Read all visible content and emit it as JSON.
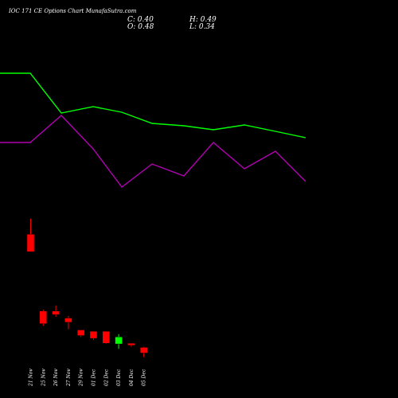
{
  "header": {
    "title": "IOC 171 CE Options Chart MunafaSutra.com",
    "open_label": "O: 0.48",
    "high_label": "H: 0.49",
    "low_label": "L: 0.34",
    "close_label": "C: 0.40"
  },
  "colors": {
    "background": "#000000",
    "bullish": "#00ff00",
    "bearish": "#ff0000",
    "line_green": "#00ff00",
    "line_magenta": "#b000b0"
  },
  "chart_data": {
    "type": "candlestick",
    "title": "IOC 171 CE Options Chart MunafaSutra.com",
    "categories": [
      "21 Nov",
      "25 Nov",
      "26 Nov",
      "27 Nov",
      "29 Nov",
      "01 Dec",
      "02 Dec",
      "03 Dec",
      "04 Dec",
      "05 Dec"
    ],
    "candles": [
      {
        "date": "21 Nov",
        "open": 2.1,
        "high": 2.32,
        "low": 1.85,
        "close": 1.85,
        "color": "red"
      },
      {
        "date": "25 Nov",
        "open": 1.0,
        "high": 1.02,
        "low": 0.79,
        "close": 0.82,
        "color": "red"
      },
      {
        "date": "26 Nov",
        "open": 1.0,
        "high": 1.08,
        "low": 0.92,
        "close": 0.95,
        "color": "red"
      },
      {
        "date": "27 Nov",
        "open": 0.9,
        "high": 0.93,
        "low": 0.74,
        "close": 0.84,
        "color": "red"
      },
      {
        "date": "29 Nov",
        "open": 0.73,
        "high": 0.73,
        "low": 0.63,
        "close": 0.65,
        "color": "red"
      },
      {
        "date": "01 Dec",
        "open": 0.71,
        "high": 0.71,
        "low": 0.59,
        "close": 0.61,
        "color": "red"
      },
      {
        "date": "02 Dec",
        "open": 0.71,
        "high": 0.71,
        "low": 0.53,
        "close": 0.54,
        "color": "red"
      },
      {
        "date": "03 Dec",
        "open": 0.53,
        "high": 0.67,
        "low": 0.46,
        "close": 0.63,
        "color": "green"
      },
      {
        "date": "04 Dec",
        "open": 0.54,
        "high": 0.54,
        "low": 0.49,
        "close": 0.51,
        "color": "red"
      },
      {
        "date": "05 Dec",
        "open": 0.48,
        "high": 0.49,
        "low": 0.34,
        "close": 0.4,
        "color": "red"
      }
    ],
    "lines": [
      {
        "color": "#00ff00",
        "points": [
          [
            0,
            92
          ],
          [
            38,
            92
          ],
          [
            77,
            142
          ],
          [
            117,
            134
          ],
          [
            153,
            141
          ],
          [
            191,
            155
          ],
          [
            231,
            158
          ],
          [
            268,
            163
          ],
          [
            307,
            157
          ],
          [
            346,
            165
          ],
          [
            384,
            173
          ]
        ]
      },
      {
        "color": "#b000b0",
        "points": [
          [
            0,
            179
          ],
          [
            38,
            179
          ],
          [
            77,
            145
          ],
          [
            117,
            187
          ],
          [
            153,
            235
          ],
          [
            191,
            206
          ],
          [
            231,
            221
          ],
          [
            268,
            179
          ],
          [
            307,
            212
          ],
          [
            346,
            190
          ],
          [
            384,
            228
          ]
        ]
      }
    ],
    "grid": false,
    "legend": "none"
  }
}
